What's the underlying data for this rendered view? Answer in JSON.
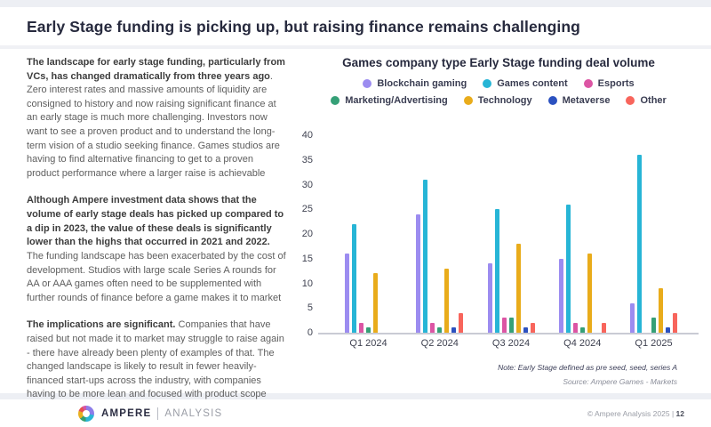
{
  "page": {
    "title": "Early Stage funding is picking up, but raising finance remains challenging"
  },
  "left_column": {
    "paragraphs": [
      {
        "lead": "The landscape for early stage funding, particularly from VCs, has changed dramatically from three years ago",
        "rest": ". Zero interest rates and massive amounts of liquidity are consigned to history and now raising significant finance at an early stage is much more challenging. Investors now want to see a proven product and to understand the long-term vision of a studio seeking finance. Games studios are having to find alternative financing to get to a proven product performance where a larger raise is achievable"
      },
      {
        "lead": "Although Ampere investment data shows that the volume of early stage deals has picked up compared to a dip in 2023, the value of these deals is significantly lower than the highs that occurred in 2021 and 2022.",
        "rest": " The funding landscape has been exacerbated by the cost of development. Studios with large scale Series A rounds for AA or AAA games often need to be supplemented with further rounds of finance before a game makes it to market"
      },
      {
        "lead": "The implications are significant.",
        "rest": " Companies that have raised but not made it to market may struggle to raise again - there have already been plenty of examples of that. The changed landscape is likely to result in fewer heavily-financed start-ups across the industry, with companies having to be more lean and focused with product scope"
      }
    ]
  },
  "chart_data": {
    "type": "bar",
    "title": "Games company type Early Stage funding deal volume",
    "categories": [
      "Q1 2024",
      "Q2 2024",
      "Q3 2024",
      "Q4 2024",
      "Q1 2025"
    ],
    "series": [
      {
        "name": "Blockchain gaming",
        "color": "#9c8cf0",
        "values": [
          16,
          24,
          14,
          15,
          6
        ]
      },
      {
        "name": "Games content",
        "color": "#27b5d6",
        "values": [
          22,
          31,
          25,
          26,
          36
        ]
      },
      {
        "name": "Esports",
        "color": "#dc55a4",
        "values": [
          2,
          2,
          3,
          2,
          0
        ]
      },
      {
        "name": "Marketing/Advertising",
        "color": "#35a077",
        "values": [
          1,
          1,
          3,
          1,
          3
        ]
      },
      {
        "name": "Technology",
        "color": "#e9ac1b",
        "values": [
          12,
          13,
          18,
          16,
          9
        ]
      },
      {
        "name": "Metaverse",
        "color": "#2b51c0",
        "values": [
          0,
          1,
          1,
          0,
          1
        ]
      },
      {
        "name": "Other",
        "color": "#f8655c",
        "values": [
          0,
          4,
          2,
          2,
          4
        ]
      }
    ],
    "ylim": [
      0,
      40
    ],
    "ytick_step": 5,
    "grid": false,
    "legend_position": "top",
    "note": "Note: Early Stage defined as pre seed, seed, series A",
    "source": "Source: Ampere Games - Markets"
  },
  "footer": {
    "brand_primary": "AMPERE",
    "brand_secondary": "ANALYSIS",
    "copyright": "© Ampere Analysis 2025",
    "separator": "|",
    "page_number": "12"
  }
}
